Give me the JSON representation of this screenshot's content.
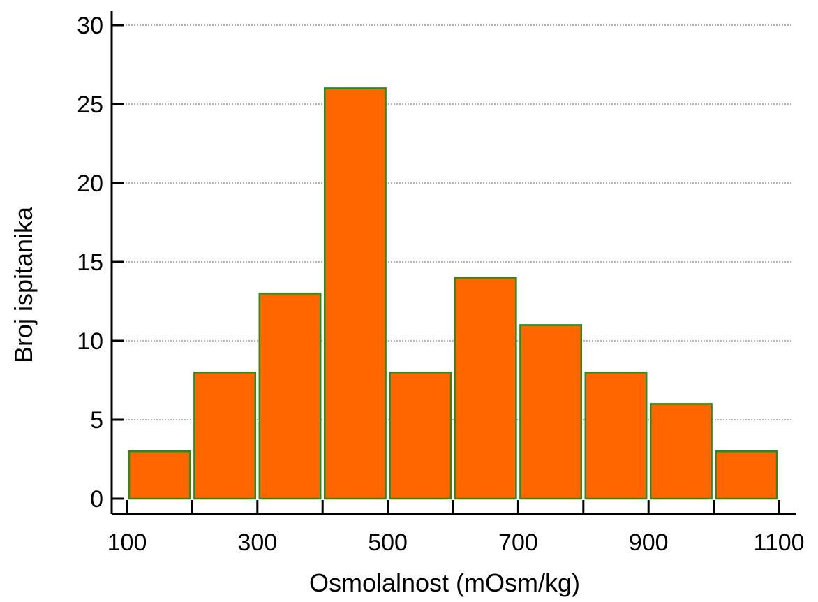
{
  "chart_data": {
    "type": "bar",
    "title": "",
    "xlabel": "Osmolalnost (mOsm/kg)",
    "ylabel": "Broj ispitanika",
    "bins": [
      {
        "start": 100,
        "end": 200,
        "value": 3
      },
      {
        "start": 200,
        "end": 300,
        "value": 8
      },
      {
        "start": 300,
        "end": 400,
        "value": 13
      },
      {
        "start": 400,
        "end": 500,
        "value": 26
      },
      {
        "start": 500,
        "end": 600,
        "value": 8
      },
      {
        "start": 600,
        "end": 700,
        "value": 14
      },
      {
        "start": 700,
        "end": 800,
        "value": 11
      },
      {
        "start": 800,
        "end": 900,
        "value": 8
      },
      {
        "start": 900,
        "end": 1000,
        "value": 6
      },
      {
        "start": 1000,
        "end": 1100,
        "value": 3
      }
    ],
    "values": [
      3,
      8,
      13,
      26,
      8,
      14,
      11,
      8,
      6,
      3
    ],
    "xlim": [
      100,
      1100
    ],
    "ylim": [
      0,
      30
    ],
    "xticks": [
      100,
      300,
      500,
      700,
      900,
      1100
    ],
    "yticks": [
      0,
      5,
      10,
      15,
      20,
      25,
      30
    ],
    "grid": "horizontal dotted",
    "colors": {
      "bar_fill": "#ff6600",
      "bar_edge": "#2a8a1e",
      "axis": "#000000",
      "grid": "#9a9a9a"
    }
  }
}
